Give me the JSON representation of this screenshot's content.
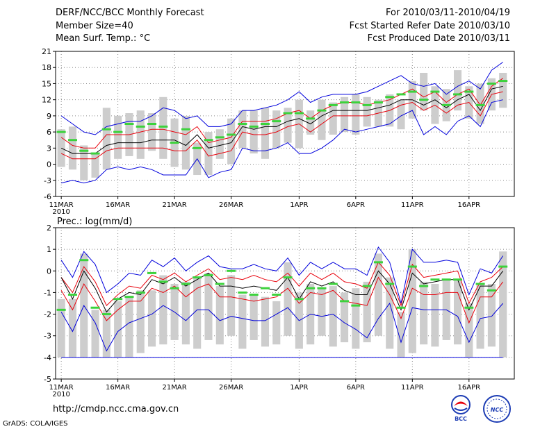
{
  "header": {
    "title": "DERF/NCC/BCC Monthly Forecast",
    "member_size": "Member Size=40",
    "variable": "Mean Surf. Temp.: °C",
    "period": "For 2010/03/11-2010/04/19",
    "refer_date": "Fcst Started Refer Date 2010/03/10",
    "produced_date": "Fcst Produced Date 2010/03/11"
  },
  "footer": {
    "url": "http://cmdp.ncc.cma.gov.cn",
    "credit": "GrADS: COLA/IGES",
    "logo1": "BCC",
    "logo2": "NCC"
  },
  "colors": {
    "box": "#cdcdcd",
    "median": "#000000",
    "quartile": "#e8000b",
    "extreme": "#0000dc",
    "obs": "#3cd23c",
    "grid": "#888888"
  },
  "chart_data": [
    {
      "type": "box-line",
      "title": "Mean Surf. Temp.: °C",
      "ylim": [
        -6,
        21
      ],
      "yticks": [
        -6,
        -3,
        0,
        3,
        6,
        9,
        12,
        15,
        18,
        21
      ],
      "xticks": [
        {
          "day": 1,
          "label": "11MAR",
          "sub": "2010"
        },
        {
          "day": 6,
          "label": "16MAR"
        },
        {
          "day": 11,
          "label": "21MAR"
        },
        {
          "day": 16,
          "label": "26MAR"
        },
        {
          "day": 22,
          "label": "1APR"
        },
        {
          "day": 27,
          "label": "6APR"
        },
        {
          "day": 32,
          "label": "11APR"
        },
        {
          "day": 37,
          "label": "16APR"
        }
      ],
      "days": 40,
      "box_top": [
        6.5,
        7,
        3.5,
        2,
        10.5,
        9,
        9.5,
        10,
        9.5,
        12.5,
        8.5,
        9,
        4,
        6,
        6.5,
        8.5,
        10,
        10,
        10.5,
        10,
        10.5,
        12,
        10,
        12,
        11.5,
        12.5,
        13,
        12.5,
        12,
        13,
        12,
        15.5,
        17,
        14.5,
        14,
        17.5,
        14.5,
        15,
        16,
        17
      ],
      "box_bottom": [
        -0.5,
        -1,
        -3,
        -2.5,
        -1,
        1,
        1.5,
        1,
        2.5,
        1,
        -0.5,
        -1,
        -2,
        -2,
        1,
        0,
        3,
        2,
        1,
        3,
        4,
        3,
        5.5,
        4.5,
        5.5,
        6,
        5.5,
        7,
        7,
        7,
        6.5,
        8.5,
        10,
        7.5,
        8,
        10,
        8.5,
        7.5,
        10,
        10.5
      ],
      "max": [
        9.0,
        7.5,
        6.0,
        5.5,
        7.0,
        7.5,
        8.0,
        8.0,
        9.0,
        10.5,
        10.0,
        8.5,
        9.0,
        7.0,
        7.0,
        7.5,
        10.0,
        10.0,
        10.5,
        11.0,
        12.0,
        13.5,
        11.5,
        12.5,
        13.0,
        13.0,
        13.0,
        13.5,
        14.5,
        15.5,
        16.5,
        15.0,
        14.5,
        15.0,
        13.0,
        14.5,
        15.5,
        14.0,
        17.5,
        19.0
      ],
      "q3": [
        5.0,
        3.5,
        3.0,
        3.0,
        5.5,
        5.5,
        5.5,
        6.0,
        6.5,
        6.5,
        6.0,
        5.5,
        7.0,
        4.0,
        4.5,
        5.0,
        8.0,
        8.0,
        8.0,
        8.5,
        9.5,
        10.0,
        8.5,
        10.0,
        11.0,
        11.5,
        11.5,
        11.0,
        11.5,
        12.0,
        13.0,
        14.0,
        12.5,
        13.5,
        11.5,
        13.0,
        14.0,
        11.0,
        14.5,
        16.0
      ],
      "median": [
        3.0,
        2.0,
        2.0,
        2.0,
        3.5,
        4.0,
        4.0,
        4.0,
        4.5,
        4.5,
        4.5,
        3.5,
        5.5,
        3.0,
        3.5,
        4.0,
        7.0,
        6.5,
        7.0,
        7.0,
        8.0,
        8.5,
        7.5,
        9.0,
        10.0,
        10.0,
        10.0,
        10.0,
        10.5,
        11.0,
        12.0,
        12.0,
        11.0,
        12.0,
        10.5,
        12.0,
        13.0,
        10.0,
        14.0,
        14.5
      ],
      "q1": [
        2.0,
        1.0,
        1.0,
        1.0,
        2.5,
        3.0,
        3.0,
        3.0,
        3.0,
        3.0,
        2.5,
        2.5,
        4.5,
        1.5,
        2.0,
        2.5,
        6.0,
        5.5,
        5.5,
        6.0,
        7.0,
        7.5,
        6.0,
        7.5,
        9.0,
        9.0,
        9.0,
        9.0,
        9.5,
        10.0,
        11.0,
        11.5,
        10.0,
        11.0,
        9.5,
        11.0,
        11.5,
        9.0,
        13.0,
        13.5
      ],
      "min": [
        -3.5,
        -3.0,
        -3.5,
        -3.0,
        -1.0,
        -0.5,
        -1.0,
        -0.5,
        -1.0,
        -2.0,
        -2.0,
        -2.0,
        1.0,
        -2.5,
        -1.5,
        -1.0,
        3.0,
        2.5,
        2.5,
        3.0,
        4.0,
        2.0,
        2.0,
        3.0,
        4.5,
        6.5,
        6.0,
        6.5,
        7.0,
        7.5,
        9.0,
        10.0,
        5.5,
        7.0,
        5.5,
        8.0,
        9.0,
        7.0,
        11.5,
        12.0
      ],
      "obs": [
        6.0,
        4.5,
        2.5,
        2.0,
        6.5,
        6.0,
        7.5,
        7.0,
        7.5,
        7.0,
        4.0,
        6.5,
        3.0,
        4.5,
        5.0,
        5.5,
        7.5,
        7.0,
        7.5,
        8.0,
        9.5,
        9.5,
        8.5,
        10.0,
        11.0,
        11.5,
        11.5,
        11.0,
        11.5,
        12.5,
        13.0,
        13.5,
        12.0,
        13.5,
        11.0,
        13.0,
        13.5,
        11.0,
        15.0,
        15.5
      ]
    },
    {
      "type": "box-line",
      "title": "Prec.: log(mm/d)",
      "ylim": [
        -5,
        2
      ],
      "yticks": [
        -5,
        -4,
        -3,
        -2,
        -1,
        0,
        1,
        2
      ],
      "xticks": [
        {
          "day": 1,
          "label": "11MAR",
          "sub": "2010"
        },
        {
          "day": 6,
          "label": "16MAR"
        },
        {
          "day": 11,
          "label": "21MAR"
        },
        {
          "day": 16,
          "label": "26MAR"
        },
        {
          "day": 22,
          "label": "1APR"
        },
        {
          "day": 27,
          "label": "6APR"
        },
        {
          "day": 32,
          "label": "11APR"
        },
        {
          "day": 37,
          "label": "16APR"
        }
      ],
      "days": 40,
      "box_top": [
        -1.3,
        -1.3,
        0.8,
        -1.8,
        -1.8,
        -1.4,
        -1.2,
        -0.9,
        -0.9,
        -0.2,
        -0.6,
        -0.5,
        -0.3,
        -0.1,
        -0.7,
        -0.2,
        -1.1,
        -1.1,
        -1.2,
        -1.4,
        0.4,
        -1.0,
        -0.6,
        -0.8,
        -0.7,
        -1.0,
        -0.8,
        -0.5,
        0.8,
        -0.3,
        -1.9,
        1.0,
        -0.5,
        -0.6,
        -0.4,
        -0.4,
        -1.5,
        -0.6,
        -0.6,
        0.9
      ],
      "box_bottom": [
        -4.0,
        -4.0,
        -4.0,
        -4.0,
        -4.0,
        -4.0,
        -4.0,
        -3.8,
        -3.5,
        -3.4,
        -3.2,
        -3.4,
        -3.6,
        -3.2,
        -3.4,
        -3.0,
        -3.6,
        -3.2,
        -3.5,
        -3.4,
        -3.0,
        -3.6,
        -3.4,
        -3.0,
        -3.5,
        -3.3,
        -3.6,
        -3.3,
        -3.0,
        -3.6,
        -4.0,
        -3.8,
        -3.4,
        -3.5,
        -3.2,
        -3.4,
        -4.0,
        -3.6,
        -3.5,
        -4.0
      ],
      "max": [
        0.5,
        -0.3,
        0.9,
        0.3,
        -1.0,
        -0.6,
        -0.1,
        -0.2,
        0.5,
        0.2,
        0.6,
        0.0,
        0.4,
        0.7,
        0.2,
        0.1,
        0.1,
        0.3,
        0.1,
        0.0,
        0.6,
        -0.2,
        0.4,
        0.1,
        0.4,
        0.1,
        0.1,
        -0.2,
        1.1,
        0.4,
        -1.5,
        1.0,
        0.4,
        0.4,
        0.5,
        0.4,
        -1.1,
        0.1,
        -0.1,
        0.7
      ],
      "q3": [
        -0.3,
        -1.0,
        0.2,
        -0.5,
        -1.6,
        -1.1,
        -0.7,
        -0.8,
        -0.2,
        -0.4,
        -0.1,
        -0.5,
        -0.2,
        0.1,
        -0.4,
        -0.3,
        -0.4,
        -0.2,
        -0.4,
        -0.5,
        -0.1,
        -0.7,
        -0.1,
        -0.4,
        -0.1,
        -0.5,
        -0.6,
        -0.8,
        0.4,
        -0.2,
        -1.6,
        0.3,
        -0.3,
        -0.2,
        -0.1,
        0.0,
        -1.5,
        -0.5,
        -0.3,
        0.2
      ],
      "median": [
        -0.3,
        -1.3,
        0.0,
        -0.8,
        -1.9,
        -1.3,
        -1.0,
        -1.1,
        -0.4,
        -0.6,
        -0.3,
        -0.7,
        -0.4,
        -0.1,
        -0.7,
        -0.7,
        -0.8,
        -0.7,
        -0.8,
        -0.9,
        -0.3,
        -1.3,
        -0.5,
        -0.7,
        -0.5,
        -0.9,
        -1.1,
        -1.1,
        0.0,
        -0.6,
        -1.8,
        -0.1,
        -0.6,
        -0.5,
        -0.4,
        -0.4,
        -1.8,
        -0.7,
        -0.7,
        0.0
      ],
      "q1": [
        -0.9,
        -1.8,
        -0.6,
        -1.4,
        -2.3,
        -1.8,
        -1.4,
        -1.4,
        -0.8,
        -1.0,
        -0.7,
        -1.2,
        -0.8,
        -0.6,
        -1.2,
        -1.2,
        -1.3,
        -1.4,
        -1.3,
        -1.2,
        -0.8,
        -1.5,
        -1.0,
        -1.1,
        -0.9,
        -1.4,
        -1.5,
        -1.6,
        -0.3,
        -1.1,
        -2.2,
        -0.8,
        -1.1,
        -1.1,
        -1.0,
        -1.0,
        -2.4,
        -1.2,
        -1.2,
        -0.5
      ],
      "min": [
        -1.9,
        -2.8,
        -1.6,
        -2.4,
        -3.7,
        -2.8,
        -2.4,
        -2.2,
        -2.0,
        -1.6,
        -1.9,
        -2.3,
        -1.8,
        -1.8,
        -2.3,
        -2.1,
        -2.2,
        -2.3,
        -2.3,
        -2.0,
        -1.7,
        -2.3,
        -2.0,
        -2.1,
        -2.0,
        -2.4,
        -2.7,
        -3.1,
        -2.2,
        -1.5,
        -3.3,
        -1.7,
        -1.8,
        -1.8,
        -1.8,
        -2.1,
        -3.3,
        -2.2,
        -2.1,
        -1.5
      ],
      "obs": [
        -1.8,
        -1.1,
        0.5,
        -1.7,
        -2.0,
        -1.3,
        -1.2,
        -1.0,
        -0.1,
        -0.5,
        -0.8,
        -0.6,
        -0.3,
        -0.2,
        -0.6,
        0.0,
        -1.0,
        -1.1,
        -0.8,
        -1.1,
        -0.3,
        -1.3,
        -0.8,
        -0.8,
        -0.6,
        -1.4,
        -1.6,
        -0.7,
        0.4,
        -0.6,
        -1.7,
        0.2,
        -0.7,
        -0.4,
        -0.4,
        -0.4,
        -1.7,
        -0.6,
        -0.9,
        0.2
      ]
    }
  ]
}
